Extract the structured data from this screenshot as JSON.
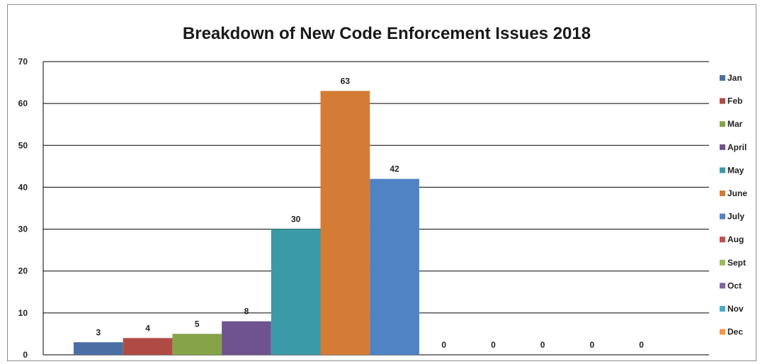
{
  "chart_data": {
    "type": "bar",
    "title": "Breakdown of New Code Enforcement Issues 2018",
    "xlabel": "",
    "ylabel": "",
    "ylim": [
      0,
      70
    ],
    "yticks": [
      0,
      10,
      20,
      30,
      40,
      50,
      60,
      70
    ],
    "grid": true,
    "legend_position": "right",
    "series": [
      {
        "name": "Jan",
        "value": 3,
        "color": "#4a6fa5"
      },
      {
        "name": "Feb",
        "value": 4,
        "color": "#b04a45"
      },
      {
        "name": "Mar",
        "value": 5,
        "color": "#86a348"
      },
      {
        "name": "April",
        "value": 8,
        "color": "#6e5390"
      },
      {
        "name": "May",
        "value": 30,
        "color": "#3a9aa6"
      },
      {
        "name": "June",
        "value": 63,
        "color": "#d47c35"
      },
      {
        "name": "July",
        "value": 42,
        "color": "#4f83c4"
      },
      {
        "name": "Aug",
        "value": 0,
        "color": "#c0504d"
      },
      {
        "name": "Sept",
        "value": 0,
        "color": "#9bbb59"
      },
      {
        "name": "Oct",
        "value": 0,
        "color": "#8064a2"
      },
      {
        "name": "Nov",
        "value": 0,
        "color": "#4bacc6"
      },
      {
        "name": "Dec",
        "value": 0,
        "color": "#f79646"
      }
    ]
  }
}
